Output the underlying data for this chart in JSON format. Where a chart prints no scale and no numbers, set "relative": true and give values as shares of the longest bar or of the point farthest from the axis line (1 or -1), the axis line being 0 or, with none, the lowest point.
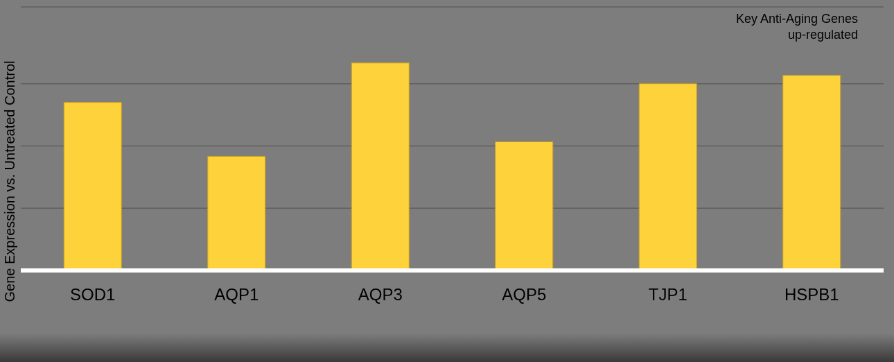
{
  "chart_data": {
    "type": "bar",
    "relative": true,
    "ylabel": "Gene Expression vs. Untreated Control",
    "annotations": [
      "Key Anti-Aging Genes up-regulated"
    ],
    "categories": [
      "SOD1",
      "AQP1",
      "AQP3",
      "AQP5",
      "TJP1",
      "HSPB1"
    ],
    "values": [
      0.81,
      0.55,
      1,
      0.62,
      0.9,
      0.94
    ],
    "color": "#fdd23a",
    "grid": "y"
  }
}
